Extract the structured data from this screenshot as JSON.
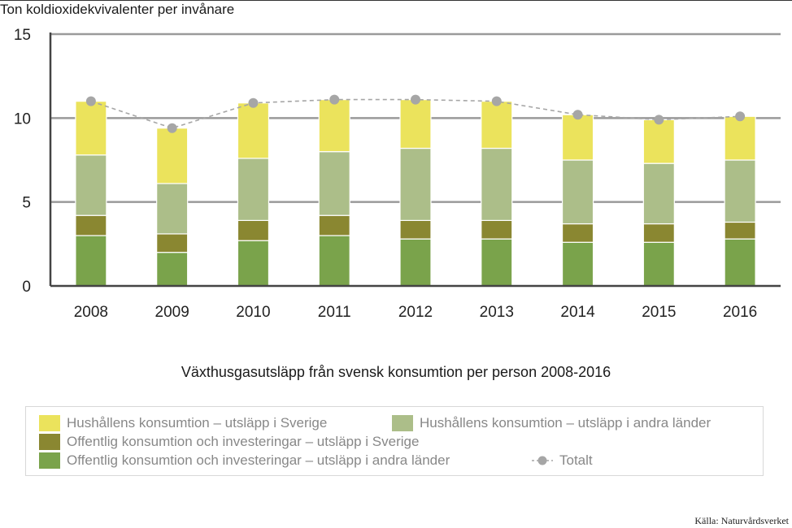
{
  "chart_data": {
    "type": "bar",
    "stacked": true,
    "ylabel": "Ton koldioxidekvivalenter per invånare",
    "title": "Växthusgasutsläpp från svensk konsumtion per person 2008-2016",
    "ylim": [
      0,
      15
    ],
    "yticks": [
      "0",
      "5",
      "10",
      "15"
    ],
    "grid": true,
    "categories": [
      "2008",
      "2009",
      "2010",
      "2011",
      "2012",
      "2013",
      "2014",
      "2015",
      "2016"
    ],
    "series": [
      {
        "name": "Offentlig konsumtion och investeringar – utsläpp i andra länder",
        "color": "#7aa34b",
        "values": [
          3.0,
          2.0,
          2.7,
          3.0,
          2.8,
          2.8,
          2.6,
          2.6,
          2.8
        ]
      },
      {
        "name": "Offentlig konsumtion och investeringar – utsläpp i Sverige",
        "color": "#8a8731",
        "values": [
          1.2,
          1.1,
          1.2,
          1.2,
          1.1,
          1.1,
          1.1,
          1.1,
          1.0
        ]
      },
      {
        "name": "Hushållens konsumtion – utsläpp i andra länder",
        "color": "#acbe89",
        "values": [
          3.6,
          3.0,
          3.7,
          3.8,
          4.3,
          4.3,
          3.8,
          3.6,
          3.7
        ]
      },
      {
        "name": "Hushållens konsumtion – utsläpp i Sverige",
        "color": "#ebe35c",
        "values": [
          3.2,
          3.3,
          3.3,
          3.1,
          2.9,
          2.8,
          2.7,
          2.6,
          2.6
        ]
      }
    ],
    "line": {
      "name": "Totalt",
      "color": "#a6a6a6",
      "values": [
        11.0,
        9.4,
        10.9,
        11.1,
        11.1,
        11.0,
        10.2,
        9.9,
        10.1
      ]
    },
    "legend": "bottom"
  },
  "legend": {
    "hh_se": "Hushållens konsumtion – utsläpp i Sverige",
    "hh_other": "Hushållens konsumtion – utsläpp i andra länder",
    "off_se": "Offentlig konsumtion och investeringar – utsläpp i Sverige",
    "off_other": "Offentlig konsumtion och investeringar – utsläpp i andra länder",
    "total": "Totalt"
  },
  "source": "Källa: Naturvårdsverket"
}
